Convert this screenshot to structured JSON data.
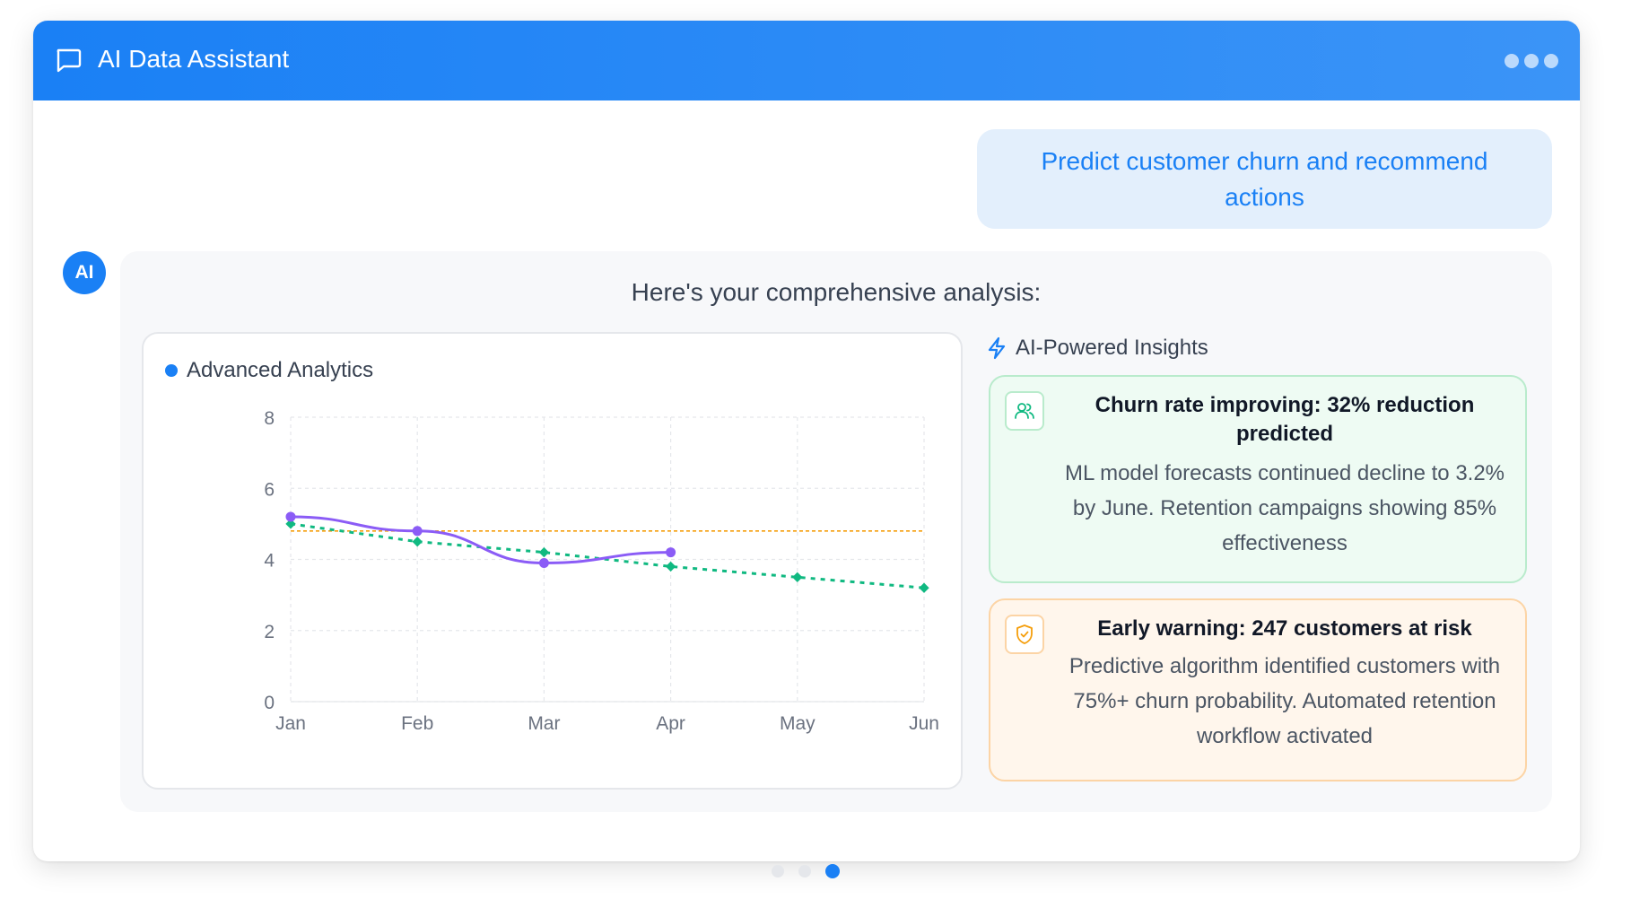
{
  "header": {
    "title": "AI Data Assistant",
    "chat_icon": "chat-bubble-icon",
    "menu_icon": "more-dots-icon"
  },
  "user_message": "Predict customer churn and recommend actions",
  "assistant": {
    "avatar_label": "AI",
    "intro": "Here's your comprehensive analysis:"
  },
  "chart_card": {
    "title": "Advanced Analytics"
  },
  "chart_data": {
    "type": "line",
    "title": "Advanced Analytics",
    "categories": [
      "Jan",
      "Feb",
      "Mar",
      "Apr",
      "May",
      "Jun"
    ],
    "ylim": [
      0,
      8
    ],
    "yticks": [
      "0",
      "2",
      "4",
      "6",
      "8"
    ],
    "grid": true,
    "series": [
      {
        "values": [
          5.2,
          4.8,
          3.9,
          4.2,
          null,
          null
        ],
        "color": "#8b5cf6",
        "style": "solid-smooth"
      },
      {
        "values": [
          5.0,
          4.5,
          4.2,
          3.8,
          3.5,
          3.2
        ],
        "color": "#10b981",
        "style": "dotted"
      },
      {
        "values": [
          4.8,
          4.8,
          4.8,
          4.8,
          4.8,
          4.8
        ],
        "color": "#f59e0b",
        "style": "dashed-thin"
      }
    ]
  },
  "insights": {
    "title": "AI-Powered Insights",
    "title_icon": "lightning-icon",
    "items": [
      {
        "icon": "users-icon",
        "headline": "Churn rate improving: 32% reduction predicted",
        "body": "ML model forecasts continued decline to 3.2% by June. Retention campaigns showing 85% effectiveness",
        "accent": "#10b981"
      },
      {
        "icon": "shield-check-icon",
        "headline": "Early warning: 247 customers at risk",
        "body": "Predictive algorithm identified customers with 75%+ churn probability. Automated retention workflow activated",
        "accent": "#f59e0b"
      }
    ]
  },
  "pager": {
    "count": 3,
    "active_index": 2
  },
  "colors": {
    "primary": "#1a80f5",
    "success": "#10b981",
    "warning": "#f59e0b",
    "purple": "#8b5cf6"
  }
}
